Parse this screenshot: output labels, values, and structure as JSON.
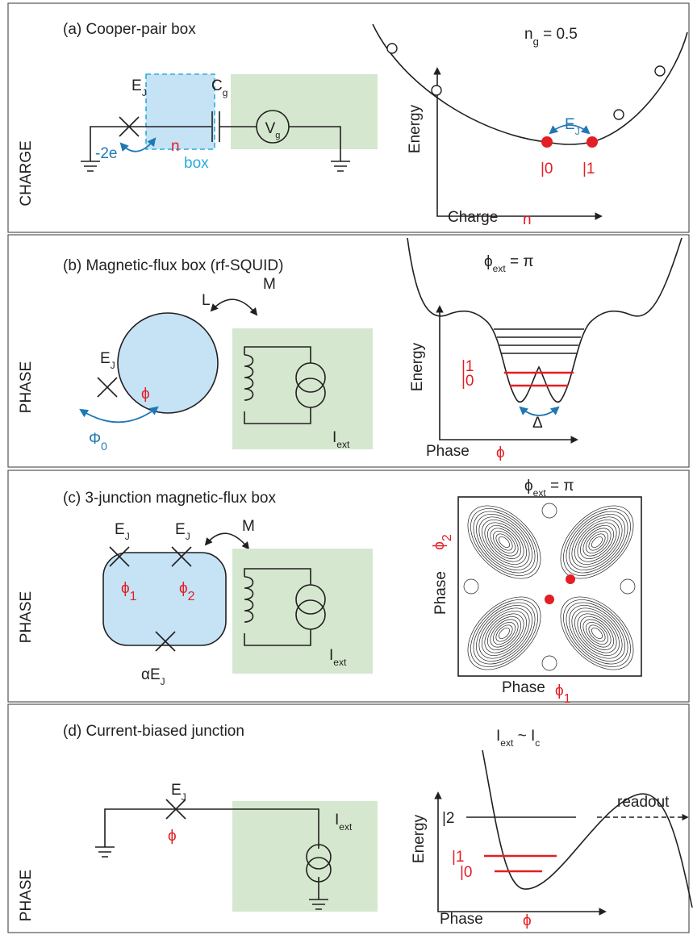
{
  "panels": [
    {
      "side": "CHARGE",
      "title": "(a)  Cooper-pair box",
      "ej": {
        "main": "E",
        "sub": "J"
      },
      "cg": {
        "main": "C",
        "sub": "g"
      },
      "vg": {
        "main": "V",
        "sub": "g"
      },
      "charge_n": "n",
      "cooper": "-2e",
      "box": "box",
      "plot_title": {
        "main": "n",
        "sub": "g",
        "rest": " = 0.5"
      },
      "coupling": {
        "main": "E",
        "sub": "J"
      },
      "state0": "|0",
      "state1": "|1",
      "y_axis": "Energy",
      "x_axis": "Charge",
      "x_var": "n"
    },
    {
      "side": "PHASE",
      "title": "(b)  Magnetic-flux box   (rf-SQUID)",
      "l": "L",
      "m": "M",
      "ej": {
        "main": "E",
        "sub": "J"
      },
      "phi": "ϕ",
      "flux": {
        "main": "Φ",
        "sub": "0"
      },
      "iext": {
        "main": "I",
        "sub": "ext"
      },
      "plot_title": {
        "main": "ϕ",
        "sub": "ext",
        "rest": " = π"
      },
      "state1": "|1",
      "state0": "|0",
      "delta": "Δ",
      "y_axis": "Energy",
      "x_axis": "Phase",
      "x_var": "ϕ"
    },
    {
      "side": "PHASE",
      "title": "(c)  3-junction magnetic-flux box",
      "ej1": {
        "main": "E",
        "sub": "J"
      },
      "ej2": {
        "main": "E",
        "sub": "J"
      },
      "m": "M",
      "phi1": {
        "main": "ϕ",
        "sub": "1"
      },
      "phi2": {
        "main": "ϕ",
        "sub": "2"
      },
      "alpha_ej": {
        "main": "αE",
        "sub": "J"
      },
      "iext": {
        "main": "I",
        "sub": "ext"
      },
      "plot_title": {
        "main": "ϕ",
        "sub": "ext",
        "rest": " = π"
      },
      "y_var": {
        "main": "ϕ",
        "sub": "2"
      },
      "y_axis": "Phase",
      "x_axis": "Phase",
      "x_var": {
        "main": "ϕ",
        "sub": "1"
      }
    },
    {
      "side": "PHASE",
      "title": "(d)  Current-biased junction",
      "plot_title": {
        "main": "I",
        "sub": "ext",
        "rest": " ~ I",
        "sub2": "c"
      },
      "ej": {
        "main": "E",
        "sub": "J"
      },
      "phi": "ϕ",
      "iext": {
        "main": "I",
        "sub": "ext"
      },
      "readout": "readout",
      "state2": "|2",
      "state1": "|1",
      "state0": "|0",
      "y_axis": "Energy",
      "x_axis": "Phase",
      "x_var": "ϕ"
    }
  ]
}
